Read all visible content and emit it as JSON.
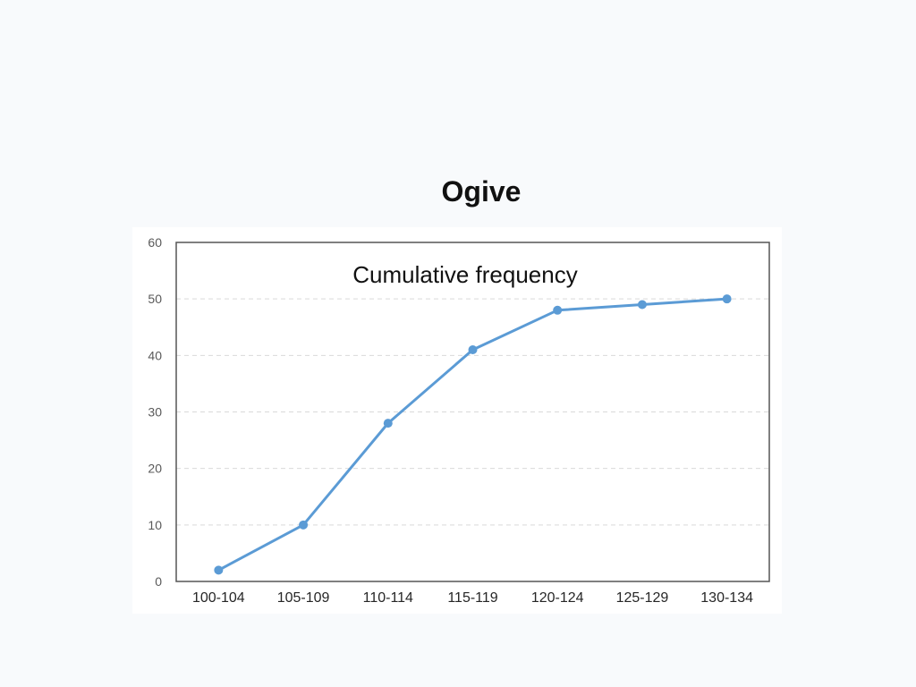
{
  "slide": {
    "title": "Ogive"
  },
  "chart_data": {
    "type": "line",
    "title": "Cumulative frequency",
    "xlabel": "",
    "ylabel": "",
    "categories": [
      "100-104",
      "105-109",
      "110-114",
      "115-119",
      "120-124",
      "125-129",
      "130-134"
    ],
    "series": [
      {
        "values": [
          2,
          10,
          28,
          41,
          48,
          49,
          50
        ]
      }
    ],
    "ylim": [
      0,
      60
    ],
    "yticks": [
      0,
      10,
      20,
      30,
      40,
      50,
      60
    ],
    "grid": true,
    "legend": "none",
    "line_color": "#5b9bd5",
    "grid_color": "#d9d9d9"
  }
}
